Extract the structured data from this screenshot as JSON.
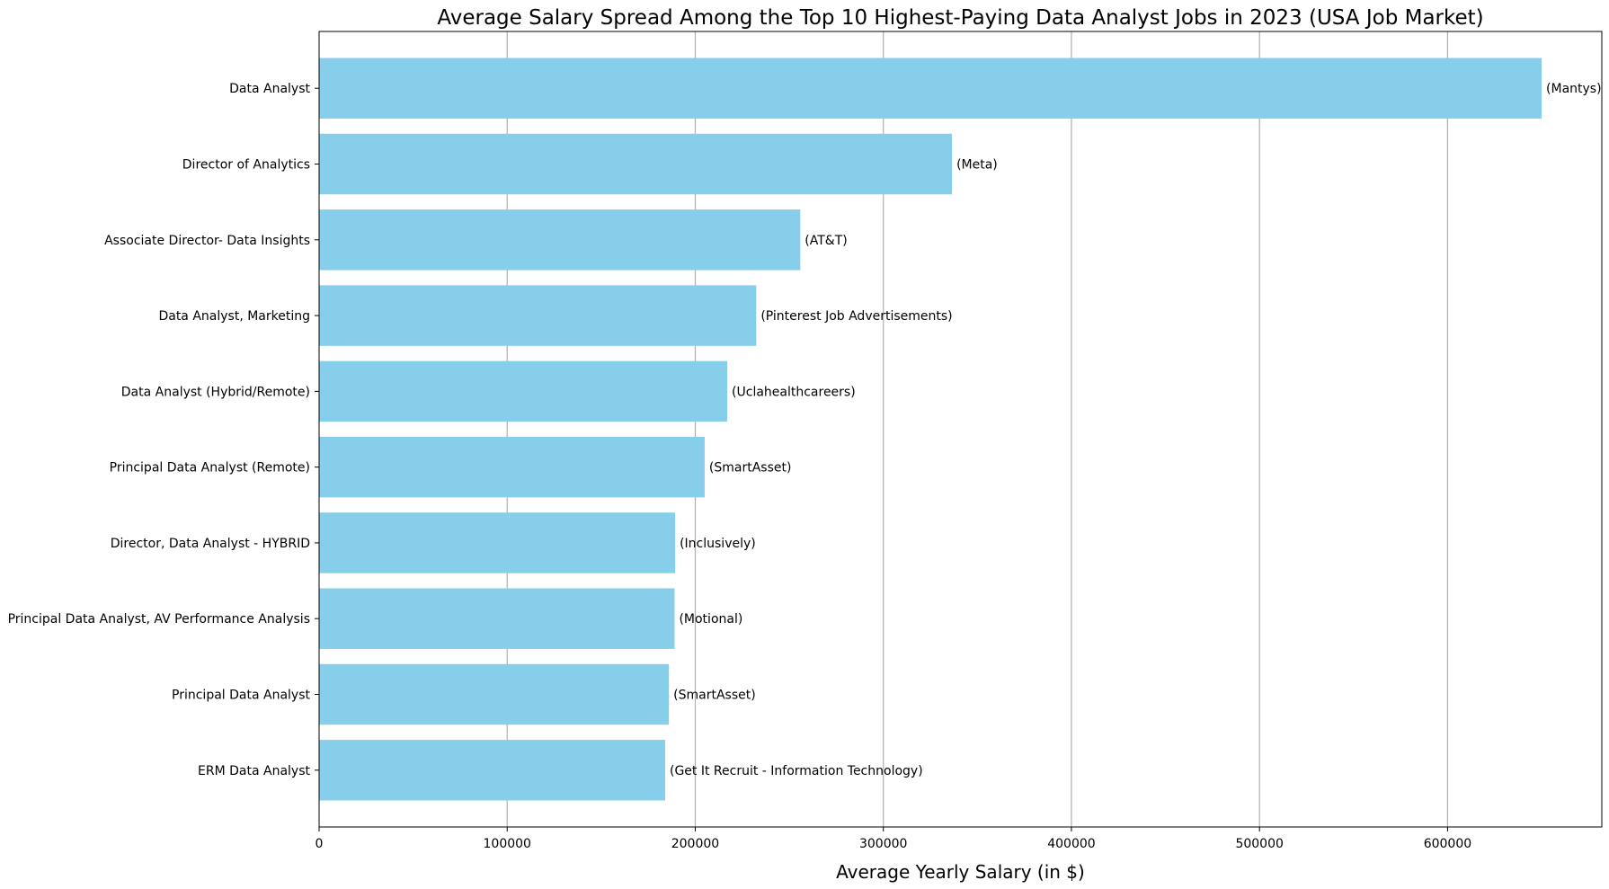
{
  "chart_data": {
    "type": "bar",
    "orientation": "horizontal",
    "title": "Average Salary Spread Among the Top 10 Highest-Paying Data Analyst Jobs in 2023 (USA Job Market)",
    "xlabel": "Average Yearly Salary (in $)",
    "ylabel": "",
    "xlim": [
      0,
      682000
    ],
    "xticks": [
      0,
      100000,
      200000,
      300000,
      400000,
      500000,
      600000
    ],
    "grid": "x",
    "bar_color": "#87ceeb",
    "categories": [
      "Data Analyst",
      "Director of Analytics",
      "Associate Director- Data Insights",
      "Data Analyst, Marketing",
      "Data Analyst (Hybrid/Remote)",
      "Principal Data Analyst (Remote)",
      "Director, Data Analyst - HYBRID",
      "Principal Data Analyst, AV Performance Analysis",
      "Principal Data Analyst",
      "ERM Data Analyst"
    ],
    "values": [
      650000,
      336500,
      255830,
      232423,
      217000,
      205000,
      189309,
      189000,
      186000,
      184000
    ],
    "labels": [
      "(Mantys)",
      "(Meta)",
      "(AT&T)",
      "(Pinterest Job Advertisements)",
      "(Uclahealthcareers)",
      "(SmartAsset)",
      "(Inclusively)",
      "(Motional)",
      "(SmartAsset)",
      "(Get It Recruit - Information Technology)"
    ]
  }
}
